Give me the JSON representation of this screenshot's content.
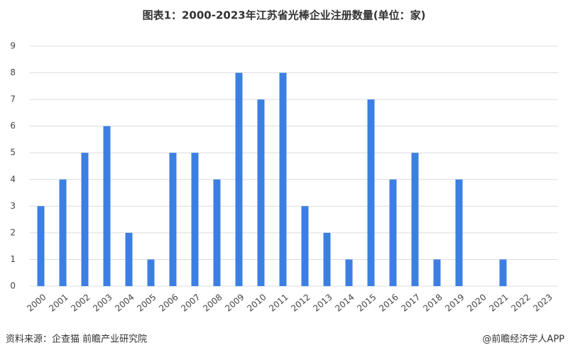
{
  "chart_data": {
    "type": "bar",
    "title": "图表1：2000-2023年江苏省光棒企业注册数量(单位：家)",
    "categories": [
      "2000",
      "2001",
      "2002",
      "2003",
      "2004",
      "2005",
      "2006",
      "2007",
      "2008",
      "2009",
      "2010",
      "2011",
      "2012",
      "2013",
      "2014",
      "2015",
      "2016",
      "2017",
      "2018",
      "2019",
      "2020",
      "2021",
      "2022",
      "2023"
    ],
    "values": [
      3,
      4,
      5,
      6,
      2,
      1,
      5,
      5,
      4,
      8,
      7,
      8,
      3,
      2,
      1,
      7,
      4,
      5,
      1,
      4,
      0,
      1,
      0,
      0
    ],
    "color": "#3b7fe3",
    "ylim": [
      0,
      9
    ],
    "yticks": [
      0,
      1,
      2,
      3,
      4,
      5,
      6,
      7,
      8,
      9
    ],
    "grid": true,
    "source": "资料来源：企查猫 前瞻产业研究院",
    "watermark": "@前瞻经济学人APP"
  }
}
